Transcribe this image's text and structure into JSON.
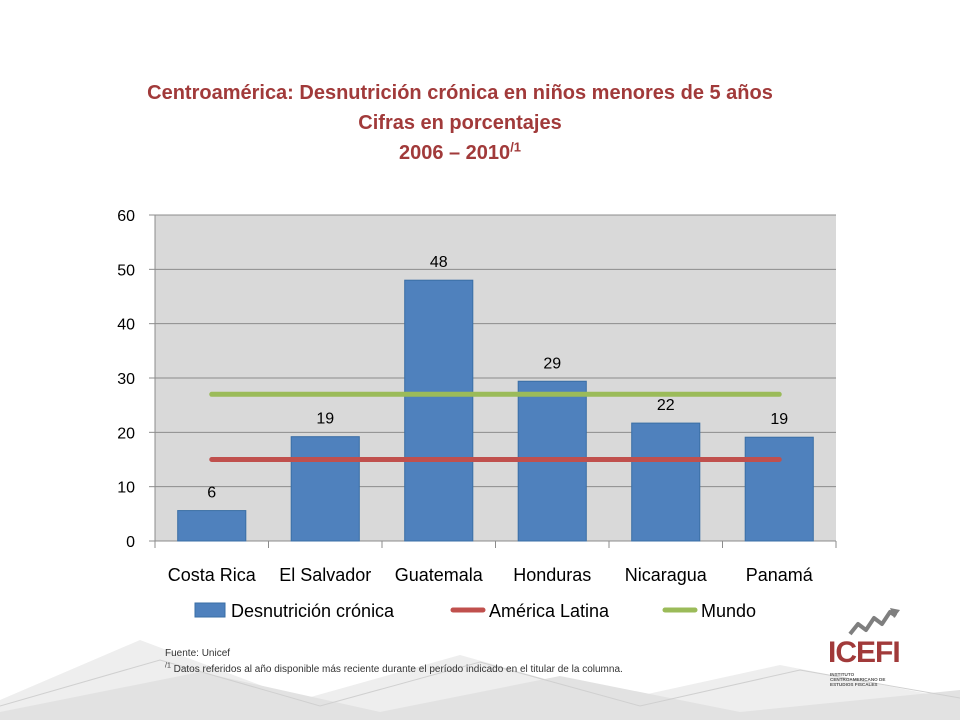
{
  "title": {
    "line1": "Centroamérica: Desnutrición crónica en niños menores de 5 años",
    "line2": "Cifras en porcentajes",
    "line3": "2006 – 2010",
    "line3_sup": "/1"
  },
  "chart_data": {
    "type": "bar",
    "categories": [
      "Costa Rica",
      "El Salvador",
      "Guatemala",
      "Honduras",
      "Nicaragua",
      "Panamá"
    ],
    "series": [
      {
        "name": "Desnutrición crónica",
        "kind": "bar",
        "color": "#4f81bd",
        "values": [
          5.6,
          19.2,
          48.0,
          29.4,
          21.7,
          19.1
        ],
        "labels": [
          "6",
          "19",
          "48",
          "29",
          "22",
          "19"
        ]
      },
      {
        "name": "América Latina",
        "kind": "line",
        "color": "#c0504d",
        "values": [
          15,
          15,
          15,
          15,
          15,
          15
        ]
      },
      {
        "name": "Mundo",
        "kind": "line",
        "color": "#9bbb59",
        "values": [
          27,
          27,
          27,
          27,
          27,
          27
        ]
      }
    ],
    "ylim": [
      0,
      60
    ],
    "yticks": [
      0,
      10,
      20,
      30,
      40,
      50,
      60
    ],
    "grid": true,
    "legend": "bottom",
    "plot_background": "#d9d9d9"
  },
  "footnote": {
    "source": "Fuente:  Unicef",
    "note_sup": "/1",
    "note": " Datos referidos al año disponible más reciente durante el período indicado en el titular de la columna."
  },
  "logo": {
    "name": "ICEFI",
    "subtitle": "INSTITUTO CENTROAMERICANO DE ESTUDIOS FISCALES",
    "color": "#a13a3a"
  }
}
